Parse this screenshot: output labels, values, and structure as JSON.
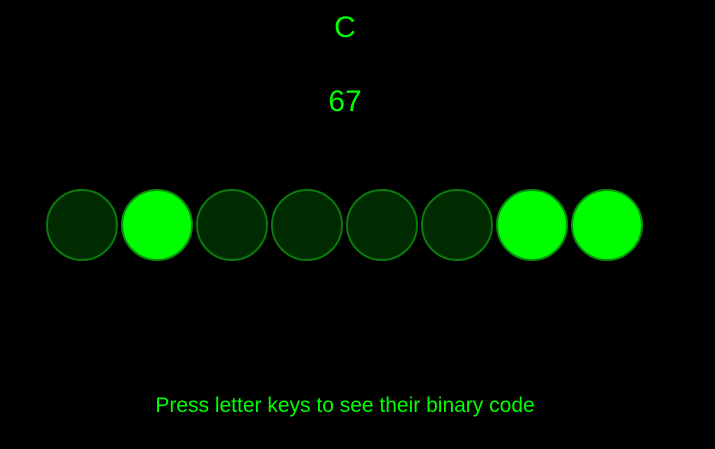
{
  "display": {
    "letter": "C",
    "code": "67"
  },
  "bits": [
    0,
    1,
    0,
    0,
    0,
    0,
    1,
    1
  ],
  "hint": "Press letter keys to see their binary code",
  "colors": {
    "background": "#000000",
    "text": "#00ff00",
    "bit_on": "#00ff00",
    "bit_off": "#002a00",
    "bit_border": "#0a7a0a"
  }
}
